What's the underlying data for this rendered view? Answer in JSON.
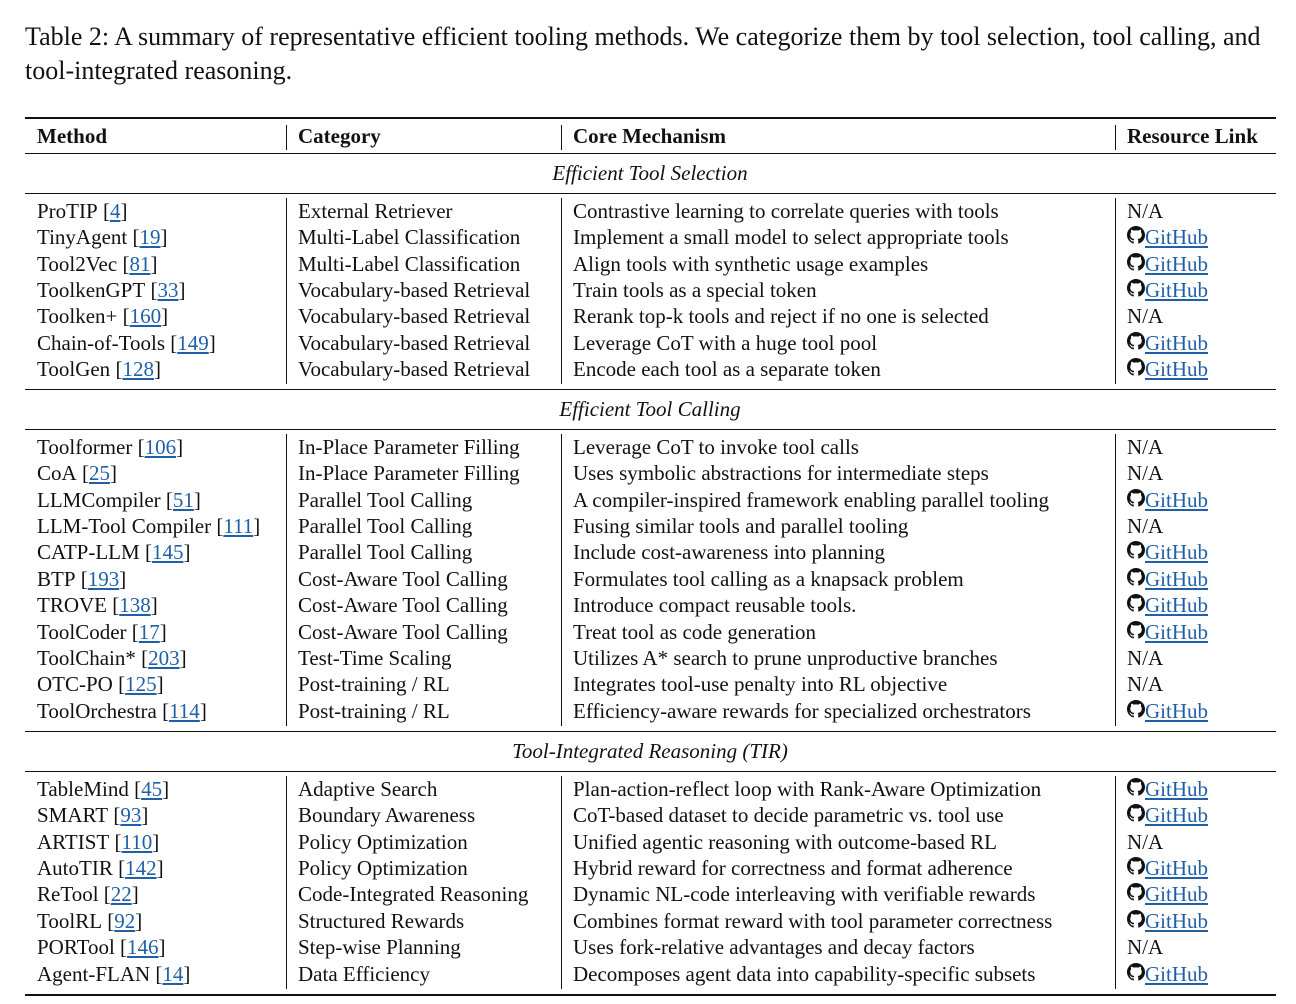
{
  "caption": "Table 2: A summary of representative efficient tooling methods. We categorize them by tool selection, tool calling, and tool-integrated reasoning.",
  "table": {
    "headers": [
      "Method",
      "Category",
      "Core Mechanism",
      "Resource Link"
    ],
    "sections": [
      {
        "title": "Efficient Tool Selection",
        "rows": [
          {
            "method": "ProTIP",
            "ref": "[4]",
            "category": "External Retriever",
            "mechanism": "Contrastive learning to correlate queries with tools",
            "link": "N/A"
          },
          {
            "method": "TinyAgent",
            "ref": "[19]",
            "category": "Multi-Label Classification",
            "mechanism": "Implement a small model to select appropriate tools",
            "link": "GitHub"
          },
          {
            "method": "Tool2Vec",
            "ref": "[81]",
            "category": "Multi-Label Classification",
            "mechanism": "Align tools with synthetic usage examples",
            "link": "GitHub"
          },
          {
            "method": "ToolkenGPT",
            "ref": "[33]",
            "category": "Vocabulary-based Retrieval",
            "mechanism": "Train tools as a special token",
            "link": "GitHub"
          },
          {
            "method": "Toolken+",
            "ref": "[160]",
            "category": "Vocabulary-based Retrieval",
            "mechanism": "Rerank top-k tools and reject if no one is selected",
            "link": "N/A"
          },
          {
            "method": "Chain-of-Tools",
            "ref": "[149]",
            "category": "Vocabulary-based Retrieval",
            "mechanism": "Leverage CoT with a huge tool pool",
            "link": "GitHub"
          },
          {
            "method": "ToolGen",
            "ref": "[128]",
            "category": "Vocabulary-based Retrieval",
            "mechanism": "Encode each tool as a separate token",
            "link": "GitHub"
          }
        ]
      },
      {
        "title": "Efficient Tool Calling",
        "rows": [
          {
            "method": "Toolformer",
            "ref": "[106]",
            "category": "In-Place Parameter Filling",
            "mechanism": "Leverage CoT to invoke tool calls",
            "link": "N/A"
          },
          {
            "method": "CoA",
            "ref": "[25]",
            "category": "In-Place Parameter Filling",
            "mechanism": "Uses symbolic abstractions for intermediate steps",
            "link": "N/A"
          },
          {
            "method": "LLMCompiler",
            "ref": "[51]",
            "category": "Parallel Tool Calling",
            "mechanism": "A compiler-inspired framework enabling parallel tooling",
            "link": "GitHub"
          },
          {
            "method": "LLM-Tool Compiler",
            "ref": "[111]",
            "category": "Parallel Tool Calling",
            "mechanism": "Fusing similar tools and parallel tooling",
            "link": "N/A"
          },
          {
            "method": "CATP-LLM",
            "ref": "[145]",
            "category": "Parallel Tool Calling",
            "mechanism": "Include cost-awareness into planning",
            "link": "GitHub"
          },
          {
            "method": "BTP",
            "ref": "[193]",
            "category": "Cost-Aware Tool Calling",
            "mechanism": "Formulates tool calling as a knapsack problem",
            "link": "GitHub"
          },
          {
            "method": "TROVE",
            "ref": "[138]",
            "category": "Cost-Aware Tool Calling",
            "mechanism": "Introduce compact reusable tools.",
            "link": "GitHub"
          },
          {
            "method": "ToolCoder",
            "ref": "[17]",
            "category": "Cost-Aware Tool Calling",
            "mechanism": "Treat tool as code generation",
            "link": "GitHub"
          },
          {
            "method": "ToolChain*",
            "ref": "[203]",
            "category": "Test-Time Scaling",
            "mechanism": "Utilizes A* search to prune unproductive branches",
            "link": "N/A"
          },
          {
            "method": "OTC-PO",
            "ref": "[125]",
            "category": "Post-training / RL",
            "mechanism": "Integrates tool-use penalty into RL objective",
            "link": "N/A"
          },
          {
            "method": "ToolOrchestra",
            "ref": "[114]",
            "category": "Post-training / RL",
            "mechanism": "Efficiency-aware rewards for specialized orchestrators",
            "link": "GitHub"
          }
        ]
      },
      {
        "title": "Tool-Integrated Reasoning (TIR)",
        "rows": [
          {
            "method": "TableMind",
            "ref": "[45]",
            "category": "Adaptive Search",
            "mechanism": "Plan-action-reflect loop with Rank-Aware Optimization",
            "link": "GitHub"
          },
          {
            "method": "SMART",
            "ref": "[93]",
            "category": "Boundary Awareness",
            "mechanism": "CoT-based dataset to decide parametric vs. tool use",
            "link": "GitHub"
          },
          {
            "method": "ARTIST",
            "ref": "[110]",
            "category": "Policy Optimization",
            "mechanism": "Unified agentic reasoning with outcome-based RL",
            "link": "N/A"
          },
          {
            "method": "AutoTIR",
            "ref": "[142]",
            "category": "Policy Optimization",
            "mechanism": "Hybrid reward for correctness and format adherence",
            "link": "GitHub"
          },
          {
            "method": "ReTool",
            "ref": "[22]",
            "category": "Code-Integrated Reasoning",
            "mechanism": "Dynamic NL-code interleaving with verifiable rewards",
            "link": "GitHub"
          },
          {
            "method": "ToolRL",
            "ref": "[92]",
            "category": "Structured Rewards",
            "mechanism": "Combines format reward with tool parameter correctness",
            "link": "GitHub"
          },
          {
            "method": "PORTool",
            "ref": "[146]",
            "category": "Step-wise Planning",
            "mechanism": "Uses fork-relative advantages and decay factors",
            "link": "N/A"
          },
          {
            "method": "Agent-FLAN",
            "ref": "[14]",
            "category": "Data Efficiency",
            "mechanism": "Decomposes agent data into capability-specific subsets",
            "link": "GitHub"
          }
        ]
      }
    ]
  }
}
